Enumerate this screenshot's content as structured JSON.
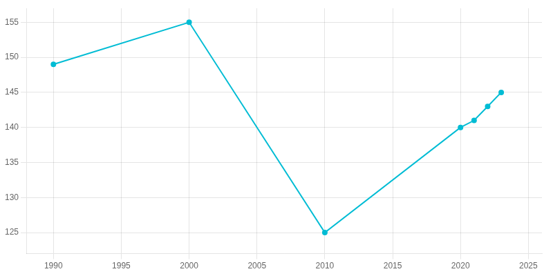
{
  "chart_data": {
    "type": "line",
    "x": [
      1990,
      2000,
      2010,
      2020,
      2021,
      2022,
      2023
    ],
    "values": [
      149,
      155,
      125,
      140,
      141,
      143,
      145
    ],
    "color": "#00BCD4",
    "marker": "circle",
    "xlim": [
      1988,
      2026
    ],
    "ylim": [
      122,
      157
    ],
    "xticks": [
      1990,
      1995,
      2000,
      2005,
      2010,
      2015,
      2020,
      2025
    ],
    "yticks": [
      125,
      130,
      135,
      140,
      145,
      150,
      155
    ],
    "grid": true
  }
}
